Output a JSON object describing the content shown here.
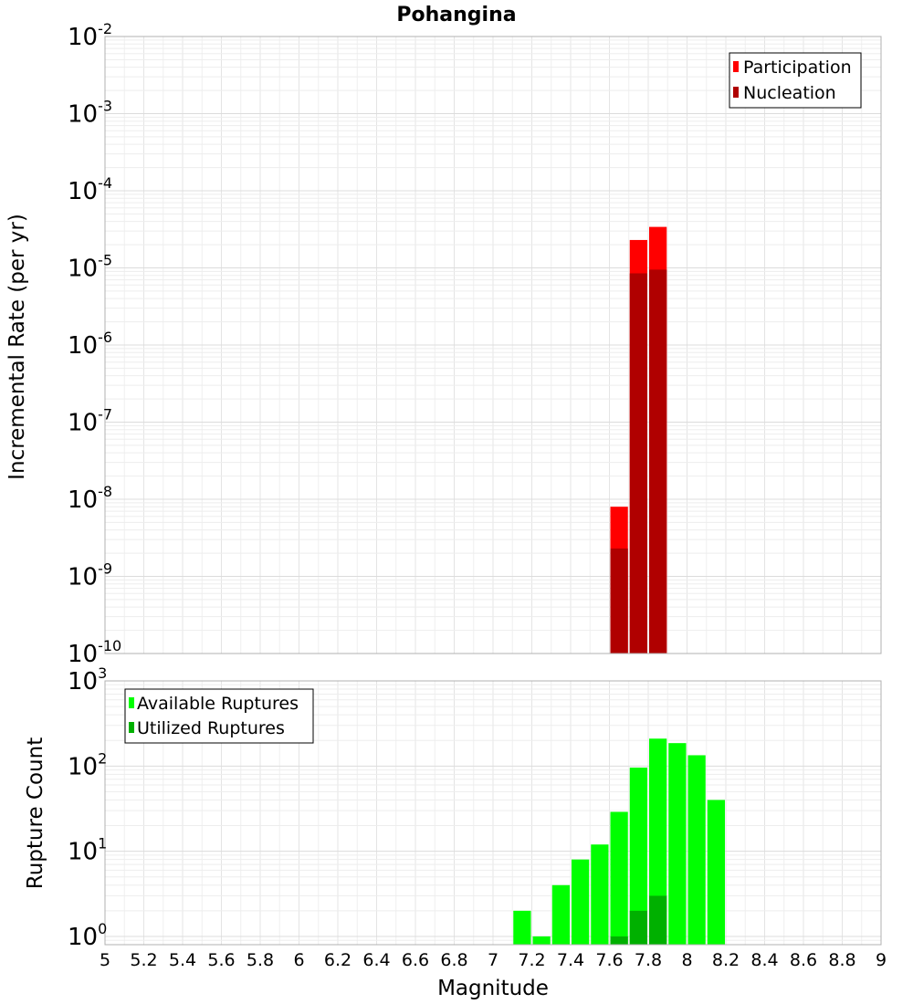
{
  "title": "Pohangina",
  "chart_data": [
    {
      "type": "bar",
      "name": "incremental-rate",
      "ylabel": "Incremental Rate (per yr)",
      "yscale": "log",
      "ylim": [
        1e-10,
        0.01
      ],
      "ytick_base": "10",
      "ytick_exponents": [
        "-10",
        "-9",
        "-8",
        "-7",
        "-6",
        "-5",
        "-4",
        "-3",
        "-2"
      ],
      "xlim": [
        5,
        9
      ],
      "bar_width": 0.1,
      "legend_position": "top-right",
      "grid": true,
      "series": [
        {
          "name": "Participation",
          "color": "#ff0000",
          "x": [
            7.65,
            7.75,
            7.85
          ],
          "values": [
            8e-09,
            2.3e-05,
            3.4e-05
          ]
        },
        {
          "name": "Nucleation",
          "color": "#b00000",
          "x": [
            7.65,
            7.75,
            7.85
          ],
          "values": [
            2.3e-09,
            8.5e-06,
            9.5e-06
          ]
        }
      ]
    },
    {
      "type": "bar",
      "name": "rupture-count",
      "ylabel": "Rupture Count",
      "yscale": "log",
      "ylim": [
        0.8,
        1000
      ],
      "ytick_base": "10",
      "ytick_exponents": [
        "0",
        "1",
        "2",
        "3"
      ],
      "xlim": [
        5,
        9
      ],
      "bar_width": 0.1,
      "legend_position": "top-left",
      "grid": true,
      "series": [
        {
          "name": "Available Ruptures",
          "color": "#00ff00",
          "x": [
            7.15,
            7.25,
            7.35,
            7.45,
            7.55,
            7.65,
            7.75,
            7.85,
            7.95,
            8.05,
            8.15
          ],
          "values": [
            2,
            1,
            4,
            8,
            12,
            29,
            96,
            210,
            186,
            134,
            40
          ]
        },
        {
          "name": "Utilized Ruptures",
          "color": "#00b000",
          "x": [
            7.65,
            7.75,
            7.85
          ],
          "values": [
            1,
            2,
            3
          ]
        }
      ]
    }
  ],
  "xlabel": "Magnitude",
  "xticks": [
    "5",
    "5.2",
    "5.4",
    "5.6",
    "5.8",
    "6",
    "6.2",
    "6.4",
    "6.6",
    "6.8",
    "7",
    "7.2",
    "7.4",
    "7.6",
    "7.8",
    "8",
    "8.2",
    "8.4",
    "8.6",
    "8.8",
    "9"
  ]
}
